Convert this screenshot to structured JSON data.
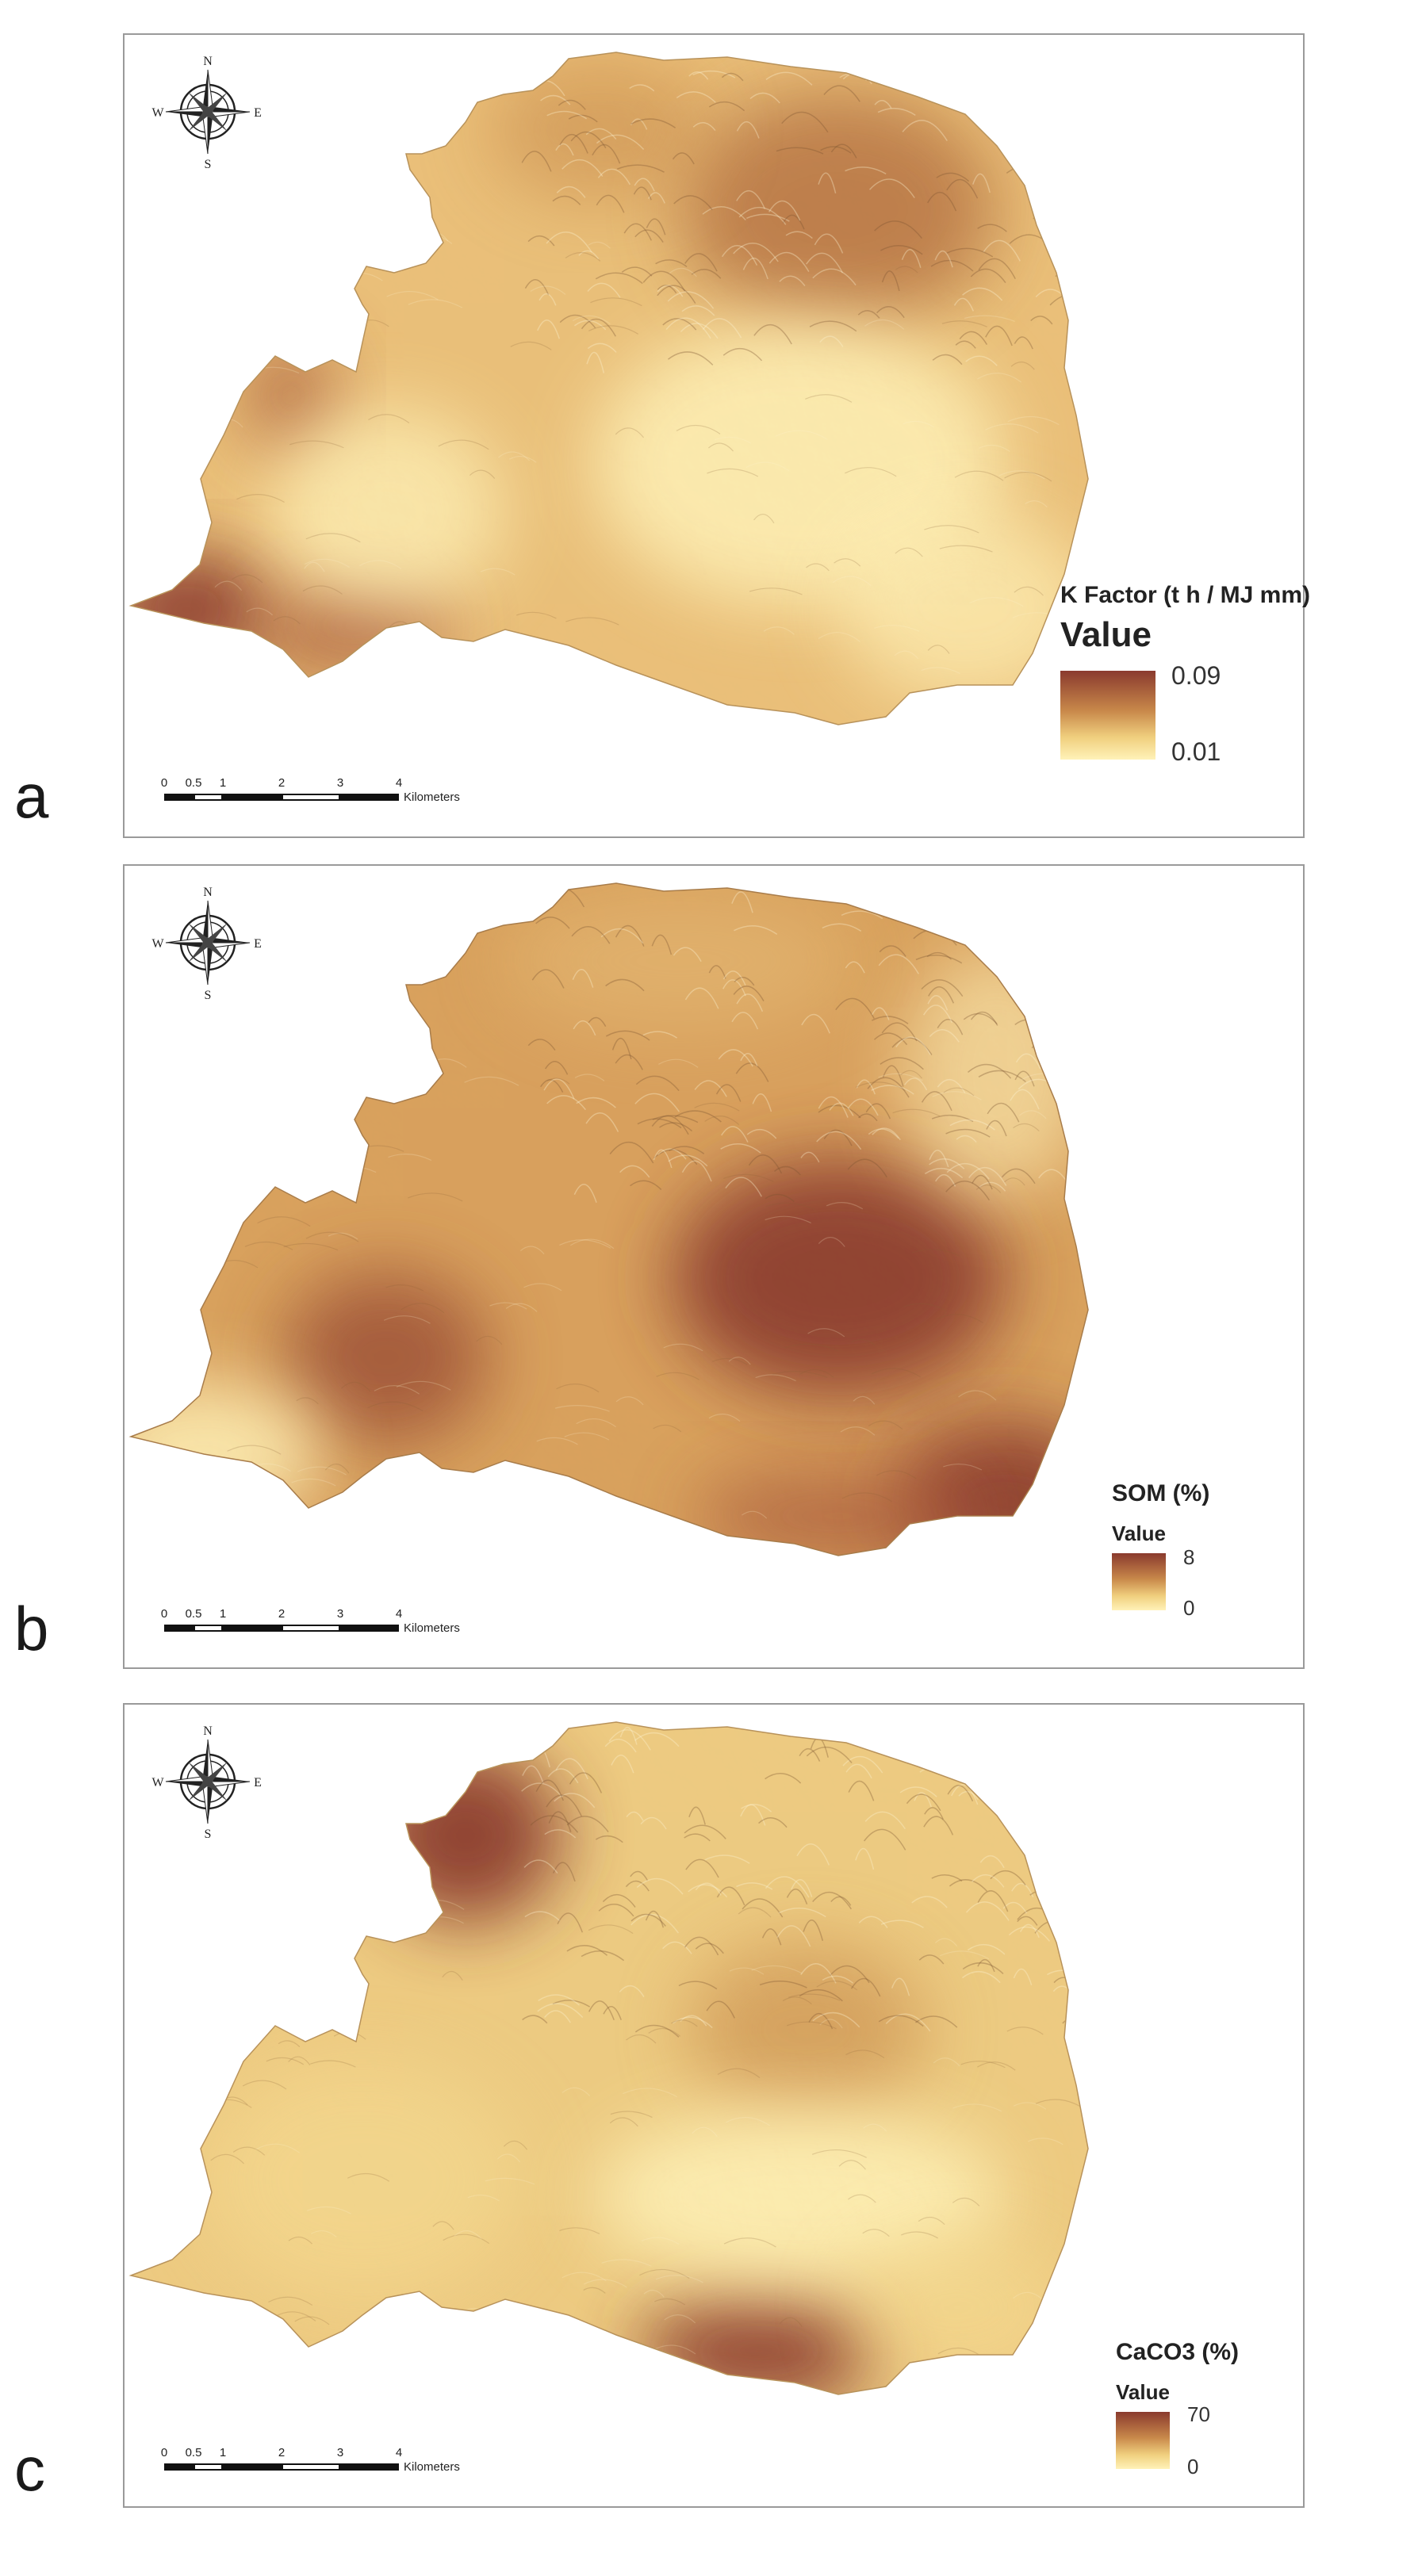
{
  "panels": [
    {
      "letter": "a",
      "legend_title": "K Factor (t h / MJ mm)",
      "legend_heading": "Value",
      "legend_max": "0.09",
      "legend_min": "0.01",
      "pattern": "k-factor"
    },
    {
      "letter": "b",
      "legend_title": "SOM (%)",
      "legend_heading": "Value",
      "legend_max": "8",
      "legend_min": "0",
      "pattern": "som"
    },
    {
      "letter": "c",
      "legend_title": "CaCO3 (%)",
      "legend_heading": "Value",
      "legend_max": "70",
      "legend_min": "0",
      "pattern": "caco3"
    }
  ],
  "compass": {
    "n": "N",
    "s": "S",
    "e": "E",
    "w": "W"
  },
  "scalebar": {
    "ticks": [
      "0",
      "0.5",
      "1",
      "2",
      "3",
      "4"
    ],
    "unit": "Kilometers"
  },
  "colors": {
    "high": "#8a3a2e",
    "mid": "#c8884a",
    "low": "#fff2b8",
    "base": "#e9bf72"
  }
}
